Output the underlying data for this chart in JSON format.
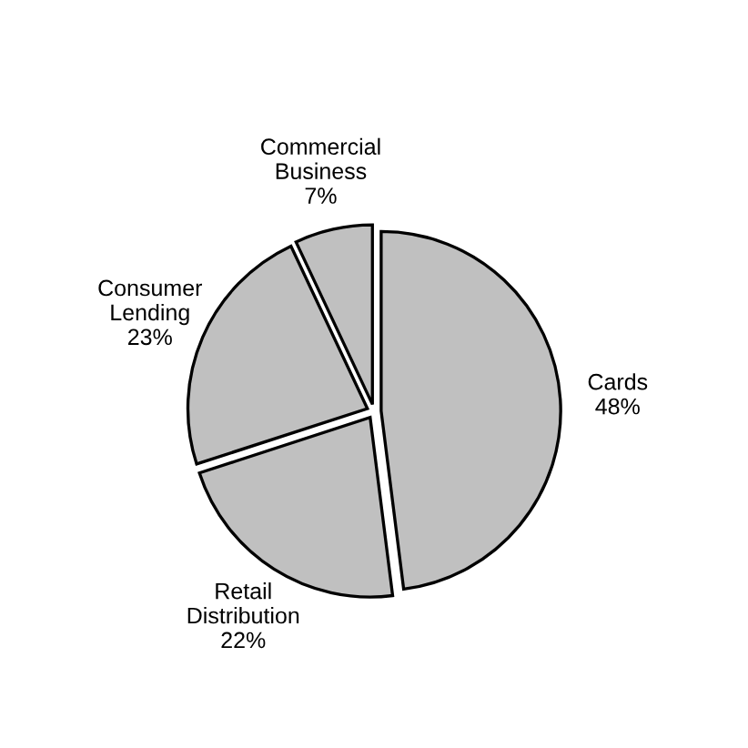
{
  "chart_data": {
    "type": "pie",
    "categories": [
      "Cards",
      "Retail Distribution",
      "Consumer Lending",
      "Commercial Business"
    ],
    "values": [
      48,
      22,
      23,
      7
    ],
    "value_labels": [
      "48%",
      "22%",
      "23%",
      "7%"
    ],
    "colors": [
      "#c0c0c0",
      "#c0c0c0",
      "#c0c0c0",
      "#c0c0c0"
    ],
    "legend": false
  }
}
